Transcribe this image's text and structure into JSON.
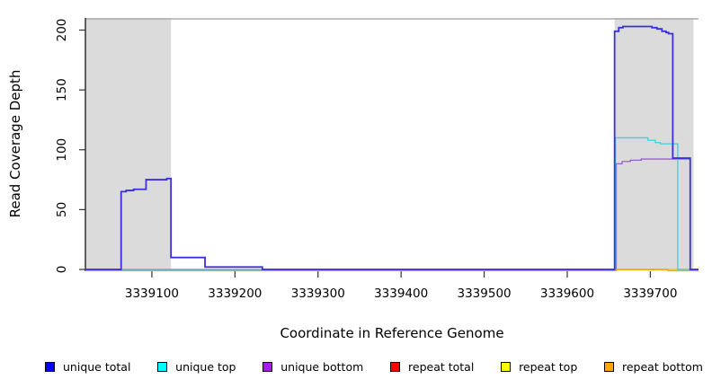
{
  "chart_data": {
    "type": "line",
    "subtype": "step-coverage-plot",
    "title": "",
    "xlabel": "Coordinate in Reference Genome",
    "ylabel": "Read Coverage Depth",
    "xlim": [
      3339020,
      3339758
    ],
    "ylim": [
      0,
      210
    ],
    "x_ticks": [
      3339100,
      3339200,
      3339300,
      3339400,
      3339500,
      3339600,
      3339700
    ],
    "y_ticks": [
      0,
      50,
      100,
      150,
      200
    ],
    "grid": false,
    "legend_position": "bottom",
    "region_color": "#DBDBDB",
    "top_boundary_color": "#ABABAB",
    "axis_color": "#000000",
    "highlight_regions": [
      {
        "x0": 3339020,
        "x1": 3339123
      },
      {
        "x0": 3339657,
        "x1": 3339752
      }
    ],
    "baseline_artifacts": [
      {
        "color": "#86d986",
        "x0": 3339020,
        "x1": 3339233,
        "y": 0
      }
    ],
    "series": [
      {
        "name": "unique total",
        "color": "#0000FF",
        "line_color": "#3a30dc",
        "steps": [
          [
            3339020,
            0
          ],
          [
            3339063,
            65
          ],
          [
            3339069,
            66
          ],
          [
            3339078,
            67
          ],
          [
            3339093,
            75
          ],
          [
            3339118,
            76
          ],
          [
            3339123,
            10
          ],
          [
            3339164,
            2
          ],
          [
            3339233,
            0
          ],
          [
            3339657,
            199
          ],
          [
            3339662,
            202
          ],
          [
            3339667,
            203
          ],
          [
            3339702,
            202
          ],
          [
            3339708,
            201
          ],
          [
            3339714,
            199
          ],
          [
            3339719,
            198
          ],
          [
            3339722,
            197
          ],
          [
            3339727,
            93
          ],
          [
            3339748,
            0
          ]
        ]
      },
      {
        "name": "unique top",
        "color": "#00FFFF",
        "line_color": "#3ad2e2",
        "steps": [
          [
            3339020,
            0
          ],
          [
            3339658,
            110
          ],
          [
            3339697,
            108
          ],
          [
            3339706,
            106
          ],
          [
            3339712,
            105
          ],
          [
            3339733,
            0
          ]
        ]
      },
      {
        "name": "unique bottom",
        "color": "#A020F0",
        "line_color": "#9a5fd2",
        "steps": [
          [
            3339020,
            0
          ],
          [
            3339659,
            89
          ],
          [
            3339666,
            91
          ],
          [
            3339676,
            92
          ],
          [
            3339689,
            93
          ],
          [
            3339748,
            0
          ]
        ]
      },
      {
        "name": "repeat total",
        "color": "#FF0000",
        "line_color": "#dd2222",
        "steps": [
          [
            3339020,
            0
          ]
        ]
      },
      {
        "name": "repeat top",
        "color": "#FFFF00",
        "line_color": "#e6e600",
        "steps": [
          [
            3339020,
            0
          ]
        ]
      },
      {
        "name": "repeat bottom",
        "color": "#FFA500",
        "line_color": "#FFA500",
        "steps": [
          [
            3339020,
            0
          ],
          [
            3339657,
            1
          ],
          [
            3339721,
            0
          ]
        ]
      }
    ],
    "legend": {
      "items": [
        {
          "label": "unique total",
          "color": "#0000FF"
        },
        {
          "label": "unique top",
          "color": "#00FFFF"
        },
        {
          "label": "unique bottom",
          "color": "#A020F0"
        },
        {
          "label": "repeat total",
          "color": "#FF0000"
        },
        {
          "label": "repeat top",
          "color": "#FFFF00"
        },
        {
          "label": "repeat bottom",
          "color": "#FFA500"
        }
      ]
    }
  }
}
